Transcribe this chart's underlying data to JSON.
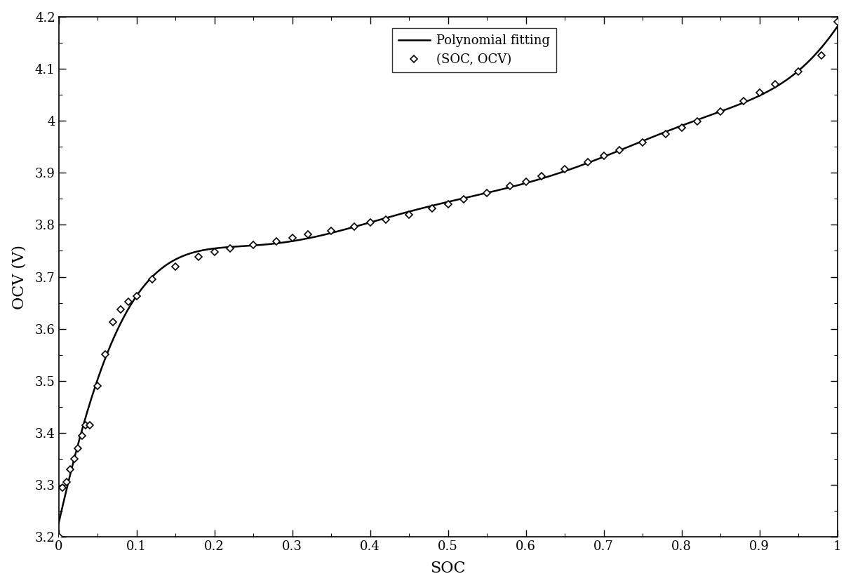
{
  "title": "",
  "xlabel": "SOC",
  "ylabel": "OCV (V)",
  "xlim": [
    0,
    1
  ],
  "ylim": [
    3.2,
    4.2
  ],
  "xticks": [
    0,
    0.1,
    0.2,
    0.3,
    0.4,
    0.5,
    0.6,
    0.7,
    0.8,
    0.9,
    1.0
  ],
  "yticks": [
    3.2,
    3.3,
    3.4,
    3.5,
    3.6,
    3.7,
    3.8,
    3.9,
    4.0,
    4.1,
    4.2
  ],
  "line_color": "#000000",
  "marker_color": "#000000",
  "background_color": "#ffffff",
  "legend_line_label": "Polynomial fitting",
  "legend_marker_label": "(SOC, OCV)",
  "soc_data_points": [
    0.0,
    0.005,
    0.01,
    0.015,
    0.02,
    0.025,
    0.03,
    0.035,
    0.04,
    0.05,
    0.06,
    0.07,
    0.08,
    0.09,
    0.1,
    0.12,
    0.15,
    0.18,
    0.2,
    0.22,
    0.25,
    0.28,
    0.3,
    0.32,
    0.35,
    0.38,
    0.4,
    0.42,
    0.45,
    0.48,
    0.5,
    0.52,
    0.55,
    0.58,
    0.6,
    0.62,
    0.65,
    0.68,
    0.7,
    0.72,
    0.75,
    0.78,
    0.8,
    0.82,
    0.85,
    0.88,
    0.9,
    0.92,
    0.95,
    0.98,
    1.0
  ],
  "ocv_data_points": [
    3.2,
    3.295,
    3.305,
    3.33,
    3.35,
    3.37,
    3.395,
    3.415,
    3.415,
    3.49,
    3.551,
    3.613,
    3.637,
    3.652,
    3.663,
    3.695,
    3.72,
    3.738,
    3.748,
    3.755,
    3.762,
    3.768,
    3.775,
    3.781,
    3.789,
    3.797,
    3.804,
    3.81,
    3.82,
    3.832,
    3.84,
    3.849,
    3.861,
    3.874,
    3.883,
    3.893,
    3.907,
    3.921,
    3.932,
    3.943,
    3.958,
    3.974,
    3.986,
    3.998,
    4.018,
    4.038,
    4.054,
    4.07,
    4.095,
    4.125,
    4.19
  ]
}
